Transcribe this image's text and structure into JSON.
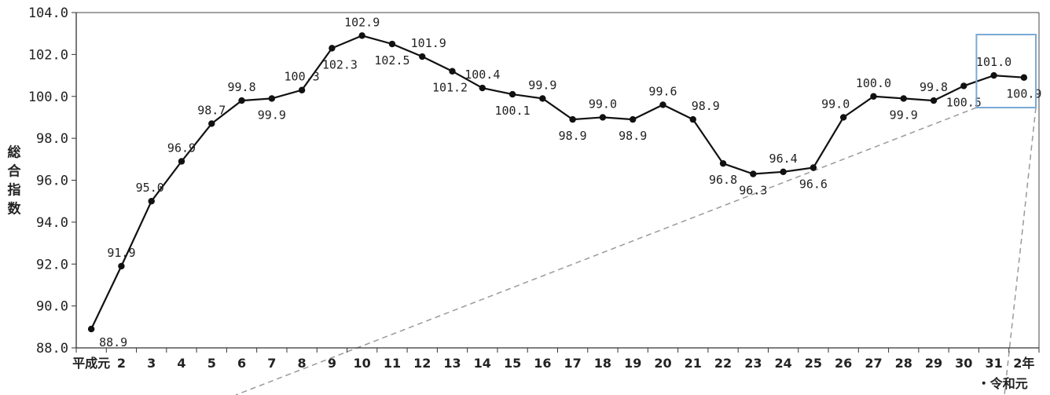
{
  "chart_data": {
    "type": "line",
    "ylabel": "総合指数",
    "ylim": [
      88.0,
      104.0
    ],
    "yticks": [
      "88.0",
      "90.0",
      "92.0",
      "94.0",
      "96.0",
      "98.0",
      "100.0",
      "102.0",
      "104.0"
    ],
    "categories": [
      "平成元",
      "2",
      "3",
      "4",
      "5",
      "6",
      "7",
      "8",
      "9",
      "10",
      "11",
      "12",
      "13",
      "14",
      "15",
      "16",
      "17",
      "18",
      "19",
      "20",
      "21",
      "22",
      "23",
      "24",
      "25",
      "26",
      "27",
      "28",
      "29",
      "30",
      "31",
      "2年"
    ],
    "category_subtitle": "・令和元",
    "series": [
      {
        "values": [
          88.9,
          91.9,
          95.0,
          96.9,
          98.7,
          99.8,
          99.9,
          100.3,
          102.3,
          102.9,
          102.5,
          101.9,
          101.2,
          100.4,
          100.1,
          99.9,
          98.9,
          99.0,
          98.9,
          99.6,
          98.9,
          96.8,
          96.3,
          96.4,
          96.6,
          99.0,
          100.0,
          99.9,
          99.8,
          100.5,
          101.0,
          100.9
        ],
        "labels": [
          "88.9",
          "91.9",
          "95.0",
          "96.9",
          "98.7",
          "99.8",
          "99.9",
          "100.3",
          "102.3",
          "102.9",
          "102.5",
          "101.9",
          "101.2",
          "100.4",
          "100.1",
          "99.9",
          "98.9",
          "99.0",
          "98.9",
          "99.6",
          "98.9",
          "96.8",
          "96.3",
          "96.4",
          "96.6",
          "99.0",
          "100.0",
          "99.9",
          "99.8",
          "100.5",
          "101.0",
          "100.9"
        ],
        "color": "#111111"
      }
    ],
    "highlight": {
      "categories": [
        "31",
        "2年"
      ],
      "border_color": "#7aaad6",
      "zoom_line_color": "#9a9a9a"
    },
    "grid": false
  }
}
